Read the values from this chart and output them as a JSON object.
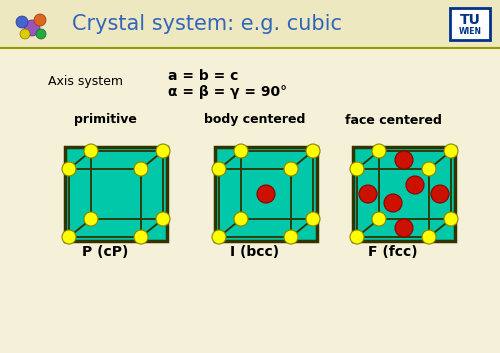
{
  "bg_color": "#F5F0D8",
  "header_bg": "#EDE8C0",
  "header_line_color": "#999900",
  "title_text": "Crystal system: e.g. cubic",
  "title_color": "#3366BB",
  "axis_label": "Axis system",
  "formula1": "a = b = c",
  "formula2": "α = β = γ = 90°",
  "labels_top": [
    "primitive",
    "body centered",
    "face centered"
  ],
  "labels_bot": [
    "P (cP)",
    "I (bcc)",
    "F (fcc)"
  ],
  "cube_bg": "#00C8A8",
  "cube_border": "#333300",
  "atom_yellow": "#FFFF00",
  "atom_red": "#CC1100",
  "atom_yellow_outline": "#888800",
  "atom_red_outline": "#880000",
  "tu_border": "#003388",
  "tu_text": "#003388"
}
